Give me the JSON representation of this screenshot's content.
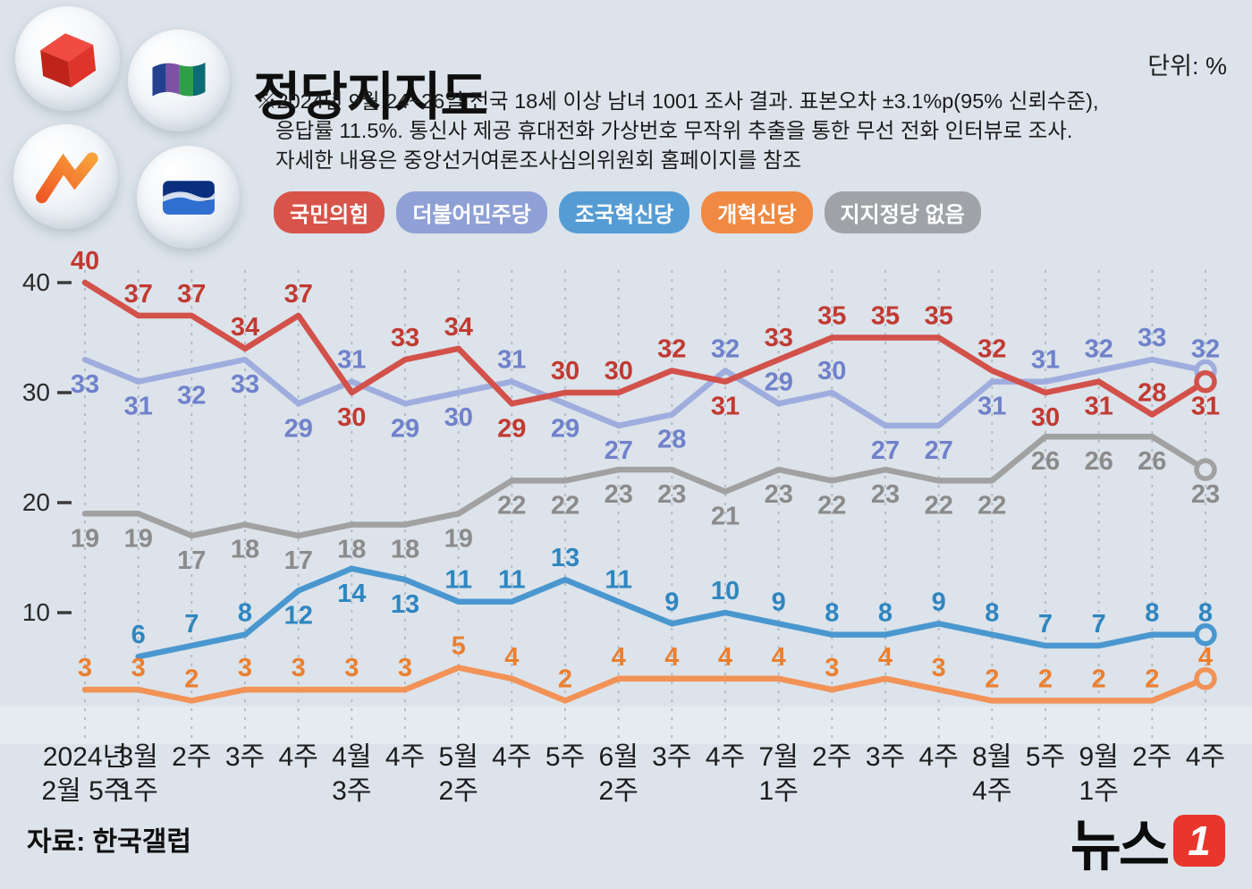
{
  "header": {
    "title": "정당지지도",
    "unit": "단위: %",
    "description_lines": [
      "※2024년 9월 24~26일 전국 18세 이상 남녀 1001 조사 결과. 표본오차 ±3.1%p(95% 신뢰수준),",
      "응답률 11.5%. 통신사 제공 휴대전화 가상번호 무작위 추출을 통한 무선 전화 인터뷰로 조사.",
      "자세한 내용은 중앙선거여론조사심의위원회 홈페이지를 참조"
    ]
  },
  "legend": [
    {
      "label": "국민의힘",
      "color": "#d8544a"
    },
    {
      "label": "더불어민주당",
      "color": "#8fa0d6"
    },
    {
      "label": "조국혁신당",
      "color": "#559cd4"
    },
    {
      "label": "개혁신당",
      "color": "#f08a43"
    },
    {
      "label": "지지정당 없음",
      "color": "#9fa3a8"
    }
  ],
  "chart_data": {
    "type": "line",
    "title": "정당지지도",
    "unit": "%",
    "categories": [
      "2024년 2월 5주",
      "3월 1주",
      "3월 2주",
      "3월 3주",
      "3월 4주",
      "4월 3주",
      "4월 4주",
      "5월 2주",
      "5월 4주",
      "5월 5주",
      "6월 2주",
      "6월 3주",
      "6월 4주",
      "7월 1주",
      "7월 2주",
      "7월 3주",
      "7월 4주",
      "8월 4주",
      "8월 5주",
      "9월 1주",
      "9월 2주",
      "9월 4주"
    ],
    "category_lines": [
      [
        "2024년",
        "2월 5주"
      ],
      [
        "3월",
        "1주"
      ],
      [
        "2주"
      ],
      [
        "3주"
      ],
      [
        "4주"
      ],
      [
        "4월",
        "3주"
      ],
      [
        "4주"
      ],
      [
        "5월",
        "2주"
      ],
      [
        "4주"
      ],
      [
        "5주"
      ],
      [
        "6월",
        "2주"
      ],
      [
        "3주"
      ],
      [
        "4주"
      ],
      [
        "7월",
        "1주"
      ],
      [
        "2주"
      ],
      [
        "3주"
      ],
      [
        "4주"
      ],
      [
        "8월",
        "4주"
      ],
      [
        "5주"
      ],
      [
        "9월",
        "1주"
      ],
      [
        "2주"
      ],
      [
        "4주"
      ]
    ],
    "ylim": [
      0,
      43
    ],
    "yticks": [
      10,
      20,
      30,
      40
    ],
    "grid": "vertical-dashed",
    "legend_position": "top",
    "series": [
      {
        "name": "국민의힘",
        "line_color": "#d2514a",
        "label_color": "#c13a32",
        "values": [
          40,
          37,
          37,
          34,
          37,
          30,
          33,
          34,
          29,
          30,
          30,
          32,
          31,
          33,
          35,
          35,
          35,
          32,
          30,
          31,
          28,
          31
        ]
      },
      {
        "name": "더불어민주당",
        "line_color": "#9fadde",
        "label_color": "#7081cb",
        "values": [
          33,
          31,
          32,
          33,
          29,
          31,
          29,
          30,
          31,
          29,
          27,
          28,
          32,
          29,
          30,
          27,
          27,
          31,
          31,
          32,
          33,
          32
        ]
      },
      {
        "name": "조국혁신당",
        "line_color": "#4a97d0",
        "label_color": "#2f86c0",
        "values": [
          null,
          6,
          7,
          8,
          12,
          14,
          13,
          11,
          11,
          13,
          11,
          9,
          10,
          9,
          8,
          8,
          9,
          8,
          7,
          7,
          8,
          8
        ]
      },
      {
        "name": "개혁신당",
        "line_color": "#f29257",
        "label_color": "#ec7f2f",
        "values": [
          3,
          3,
          2,
          3,
          3,
          3,
          3,
          5,
          4,
          2,
          4,
          4,
          4,
          4,
          3,
          4,
          3,
          2,
          2,
          2,
          2,
          4
        ]
      },
      {
        "name": "지지정당 없음",
        "line_color": "#a1a1a1",
        "label_color": "#8b8b8b",
        "values": [
          19,
          19,
          17,
          18,
          17,
          18,
          18,
          19,
          22,
          22,
          23,
          23,
          21,
          23,
          22,
          23,
          22,
          22,
          26,
          26,
          26,
          23
        ]
      }
    ]
  },
  "footer": {
    "source": "자료: 한국갤럽",
    "logo_text": "뉴스",
    "logo_badge": "1"
  }
}
